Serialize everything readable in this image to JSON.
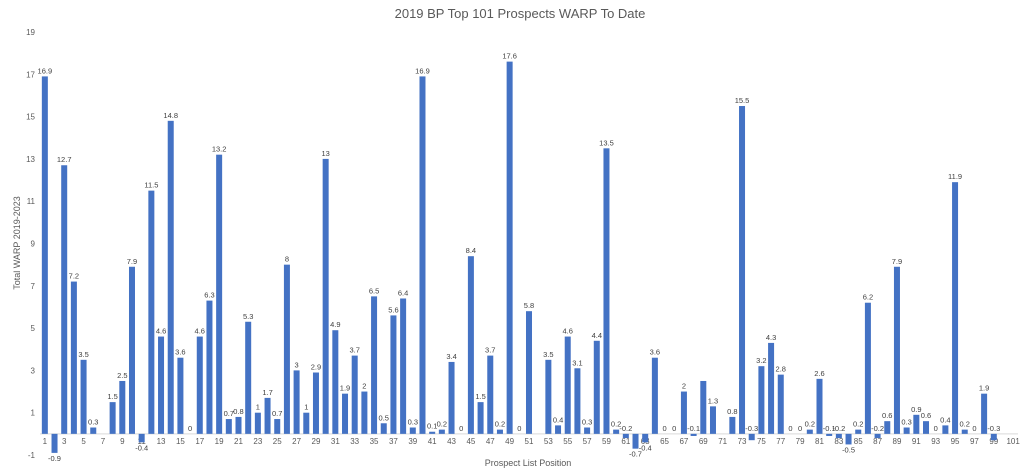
{
  "chart_data": {
    "type": "bar",
    "title": "2019 BP Top 101 Prospects WARP To Date",
    "xlabel": "Prospect List Position",
    "ylabel": "Total WARP 2019-2023",
    "ylim": [
      -1,
      19
    ],
    "yticks": [
      -1,
      1,
      3,
      5,
      7,
      9,
      11,
      13,
      15,
      17,
      19
    ],
    "xtick_labels": [
      1,
      3,
      5,
      7,
      9,
      11,
      13,
      15,
      17,
      19,
      21,
      23,
      25,
      27,
      29,
      31,
      33,
      35,
      37,
      39,
      41,
      43,
      45,
      47,
      49,
      51,
      53,
      55,
      57,
      59,
      61,
      63,
      65,
      67,
      69,
      71,
      73,
      75,
      77,
      79,
      81,
      83,
      85,
      87,
      89,
      91,
      93,
      95,
      97,
      99,
      101
    ],
    "categories": [
      1,
      2,
      3,
      4,
      5,
      6,
      7,
      8,
      9,
      10,
      11,
      12,
      13,
      14,
      15,
      16,
      17,
      18,
      19,
      20,
      21,
      22,
      23,
      24,
      25,
      26,
      27,
      28,
      29,
      30,
      31,
      32,
      33,
      34,
      35,
      36,
      37,
      38,
      39,
      40,
      41,
      42,
      43,
      44,
      45,
      46,
      47,
      48,
      49,
      50,
      51,
      52,
      53,
      54,
      55,
      56,
      57,
      58,
      59,
      60,
      61,
      62,
      63,
      64,
      65,
      66,
      67,
      68,
      69,
      70,
      71,
      72,
      73,
      74,
      75,
      76,
      77,
      78,
      79,
      80,
      81,
      82,
      83,
      84,
      85,
      86,
      87,
      88,
      89,
      90,
      91,
      92,
      93,
      94,
      95,
      96,
      97,
      98,
      99,
      100,
      101
    ],
    "values": [
      16.9,
      -0.9,
      12.7,
      7.2,
      3.5,
      0.3,
      0,
      1.5,
      2.5,
      7.9,
      -0.4,
      11.5,
      4.6,
      14.8,
      3.6,
      0,
      4.6,
      6.3,
      13.2,
      0.7,
      0.8,
      5.3,
      1,
      1.7,
      0.7,
      8,
      3,
      1,
      2.9,
      13,
      4.9,
      1.9,
      3.7,
      2,
      6.5,
      0.5,
      5.6,
      6.4,
      0.3,
      16.9,
      0.1,
      0.2,
      3.4,
      0,
      8.4,
      1.5,
      3.7,
      0.2,
      17.6,
      0,
      5.8,
      0,
      3.5,
      0.4,
      4.6,
      3.1,
      0.3,
      4.4,
      13.5,
      0.2,
      -0.2,
      -0.7,
      -0.4,
      3.6,
      0,
      0,
      2,
      -0.1,
      2.5,
      1.3,
      0,
      0.8,
      15.5,
      -0.3,
      3.2,
      4.3,
      2.8,
      0,
      0,
      0.2,
      2.6,
      -0.1,
      -0.2,
      -0.5,
      0.2,
      6.2,
      -0.2,
      0.6,
      7.9,
      0.3,
      0.9,
      0.6,
      0,
      0.4,
      11.9,
      0.2,
      0,
      1.9,
      -0.3,
      0,
      0
    ],
    "data_labels": [
      "16.9",
      "-0.9",
      "12.7",
      "7.2",
      "3.5",
      "0.3",
      "",
      "1.5",
      "2.5",
      "7.9",
      "-0.4",
      "11.5",
      "4.6",
      "14.8",
      "3.6",
      "0",
      "4.6",
      "6.3",
      "13.2",
      "0.7",
      "0.8",
      "5.3",
      "1",
      "1.7",
      "0.7",
      "8",
      "3",
      "1",
      "2.9",
      "13",
      "4.9",
      "1.9",
      "3.7",
      "2",
      "6.5",
      "0.5",
      "5.6",
      "6.4",
      "0.3",
      "16.9",
      "0.1",
      "0.2",
      "3.4",
      "0",
      "8.4",
      "1.5",
      "3.7",
      "0.2",
      "17.6",
      "0",
      "5.8",
      "",
      "3.5",
      "0.4",
      "4.6",
      "3.1",
      "0.3",
      "4.4",
      "13.5",
      "0.2",
      "-0.2",
      "-0.7",
      "-0.4",
      "3.6",
      "0",
      "0",
      "2",
      "-0.1",
      "",
      "1.3",
      "",
      "0.8",
      "15.5",
      "-0.3",
      "3.2",
      "4.3",
      "2.8",
      "0",
      "0",
      "0.2",
      "2.6",
      "-0.1",
      "-0.2",
      "-0.5",
      "0.2",
      "6.2",
      "-0.2",
      "0.6",
      "7.9",
      "0.3",
      "0.9",
      "0.6",
      "0",
      "0.4",
      "11.9",
      "0.2",
      "0",
      "1.9",
      "-0.3",
      "",
      ""
    ],
    "bar_color": "#4472C4",
    "grid": false
  }
}
